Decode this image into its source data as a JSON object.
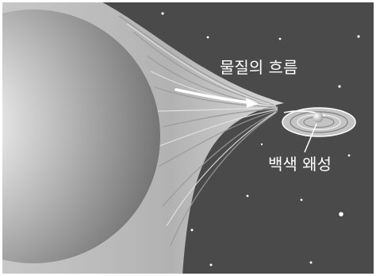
{
  "labels": {
    "flow": "물질의 흐름",
    "white_dwarf": "백색 왜성"
  },
  "colors": {
    "space": "#4a4a4a",
    "star_core": "#ffffff",
    "star_edge": "#6e6e6e",
    "stream": "#b5b5b5",
    "arrow": "#ffffff",
    "stars": "#ffffff"
  }
}
